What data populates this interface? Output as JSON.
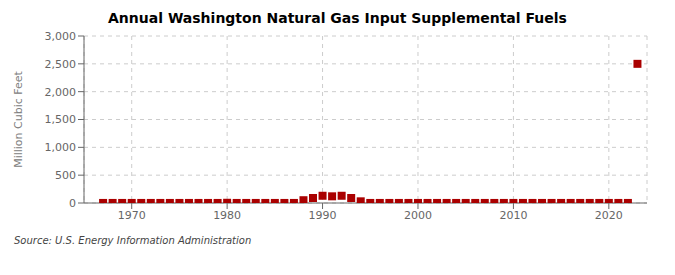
{
  "chart_data": {
    "type": "scatter",
    "title": "Annual Washington Natural Gas Input Supplemental Fuels",
    "y_label": "Million Cubic Feet",
    "annotations": [
      "Source: U.S. Energy Information Administration"
    ],
    "x": [
      1967,
      1968,
      1969,
      1970,
      1971,
      1972,
      1973,
      1974,
      1975,
      1976,
      1977,
      1978,
      1979,
      1980,
      1981,
      1982,
      1983,
      1984,
      1985,
      1986,
      1987,
      1988,
      1989,
      1990,
      1991,
      1992,
      1993,
      1994,
      1995,
      1996,
      1997,
      1998,
      1999,
      2000,
      2001,
      2002,
      2003,
      2004,
      2005,
      2006,
      2007,
      2008,
      2009,
      2010,
      2011,
      2012,
      2013,
      2014,
      2015,
      2016,
      2017,
      2018,
      2019,
      2020,
      2021,
      2022,
      2023
    ],
    "values": [
      1,
      1,
      1,
      1,
      1,
      1,
      1,
      1,
      1,
      1,
      1,
      1,
      1,
      4,
      1,
      1,
      1,
      1,
      1,
      1,
      1,
      50,
      90,
      130,
      120,
      130,
      90,
      30,
      1,
      1,
      1,
      1,
      1,
      1,
      1,
      1,
      1,
      1,
      1,
      1,
      1,
      1,
      1,
      1,
      1,
      1,
      1,
      1,
      1,
      1,
      1,
      1,
      1,
      1,
      1,
      1,
      2500
    ],
    "color": "#aa0000",
    "marker": "square",
    "xlim": [
      1965,
      2024
    ],
    "ylim": [
      0,
      3000
    ],
    "xticks": [
      1970,
      1980,
      1990,
      2000,
      2010,
      2020
    ],
    "yticks": [
      0,
      500,
      {
        "value": 1000,
        "label": "1,000"
      },
      {
        "value": 1500,
        "label": "1,500"
      },
      {
        "value": 2000,
        "label": "2,000"
      },
      {
        "value": 2500,
        "label": "2,500"
      },
      {
        "value": 3000,
        "label": "3,000"
      }
    ],
    "grid": true
  }
}
